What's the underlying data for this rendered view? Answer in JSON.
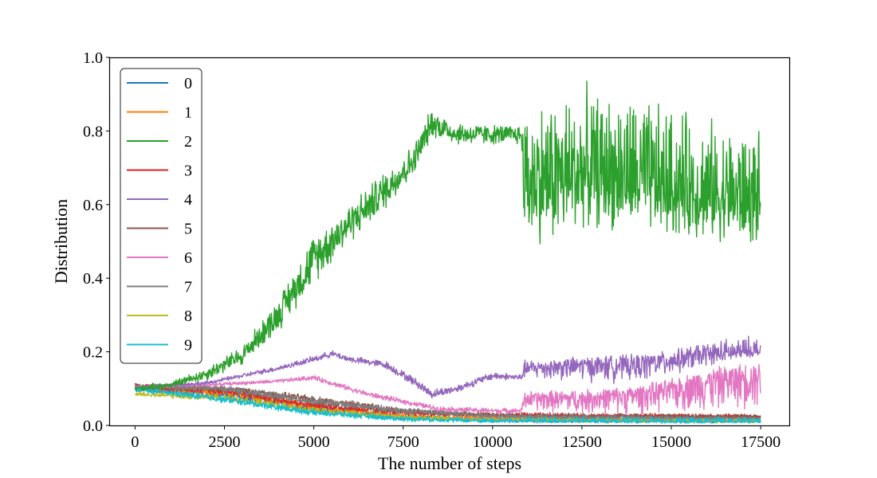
{
  "chart_data": {
    "type": "line",
    "title": "",
    "xlabel": "The number of steps",
    "ylabel": "Distribution",
    "xlim": [
      -700,
      18300
    ],
    "ylim": [
      0.0,
      1.0
    ],
    "x_ticks": [
      0,
      2500,
      5000,
      7500,
      10000,
      12500,
      15000,
      17500
    ],
    "x_tick_labels": [
      "0",
      "2500",
      "5000",
      "7500",
      "10000",
      "12500",
      "15000",
      "17500"
    ],
    "y_ticks": [
      0.0,
      0.2,
      0.4,
      0.6,
      0.8,
      1.0
    ],
    "y_tick_labels": [
      "0.0",
      "0.2",
      "0.4",
      "0.6",
      "0.8",
      "1.0"
    ],
    "grid": false,
    "legend_position": "top-left",
    "series": [
      {
        "name": "0",
        "color": "#1f77b4",
        "points": [
          [
            0,
            0.1
          ],
          [
            2500,
            0.085
          ],
          [
            5000,
            0.045
          ],
          [
            7500,
            0.022
          ],
          [
            10000,
            0.015
          ],
          [
            10800,
            0.014
          ],
          [
            12500,
            0.014
          ],
          [
            15000,
            0.013
          ],
          [
            17500,
            0.013
          ]
        ],
        "noise_low": [
          0.012,
          0.014,
          0.012,
          0.01,
          0.008,
          0.008,
          0.008,
          0.008,
          0.008
        ],
        "noise_high": [
          0.012,
          0.014,
          0.012,
          0.01,
          0.008,
          0.008,
          0.008,
          0.008,
          0.008
        ]
      },
      {
        "name": "1",
        "color": "#ff7f0e",
        "points": [
          [
            0,
            0.105
          ],
          [
            2500,
            0.09
          ],
          [
            5000,
            0.05
          ],
          [
            7500,
            0.025
          ],
          [
            10000,
            0.018
          ],
          [
            10800,
            0.017
          ],
          [
            12500,
            0.016
          ],
          [
            15000,
            0.015
          ],
          [
            17500,
            0.014
          ]
        ],
        "noise_low": [
          0.012,
          0.014,
          0.012,
          0.01,
          0.008,
          0.008,
          0.008,
          0.008,
          0.008
        ],
        "noise_high": [
          0.012,
          0.014,
          0.012,
          0.01,
          0.008,
          0.008,
          0.008,
          0.008,
          0.008
        ]
      },
      {
        "name": "2",
        "color": "#2ca02c",
        "points": [
          [
            0,
            0.1
          ],
          [
            1000,
            0.11
          ],
          [
            2000,
            0.14
          ],
          [
            3000,
            0.19
          ],
          [
            4000,
            0.3
          ],
          [
            5000,
            0.45
          ],
          [
            6000,
            0.55
          ],
          [
            7000,
            0.64
          ],
          [
            7800,
            0.72
          ],
          [
            8300,
            0.82
          ],
          [
            9000,
            0.79
          ],
          [
            10000,
            0.79
          ],
          [
            10800,
            0.79
          ],
          [
            10900,
            0.66
          ],
          [
            12000,
            0.67
          ],
          [
            12500,
            0.68
          ],
          [
            14000,
            0.67
          ],
          [
            15000,
            0.64
          ],
          [
            16000,
            0.62
          ],
          [
            17500,
            0.61
          ]
        ],
        "noise_low": [
          0.01,
          0.01,
          0.02,
          0.03,
          0.05,
          0.07,
          0.06,
          0.06,
          0.05,
          0.04,
          0.03,
          0.03,
          0.03,
          0.18,
          0.2,
          0.15,
          0.17,
          0.15,
          0.12,
          0.14
        ],
        "noise_high": [
          0.01,
          0.01,
          0.02,
          0.03,
          0.05,
          0.08,
          0.06,
          0.06,
          0.05,
          0.05,
          0.04,
          0.03,
          0.03,
          0.24,
          0.26,
          0.26,
          0.25,
          0.25,
          0.24,
          0.2
        ]
      },
      {
        "name": "3",
        "color": "#d62728",
        "points": [
          [
            0,
            0.105
          ],
          [
            2500,
            0.095
          ],
          [
            5000,
            0.055
          ],
          [
            7500,
            0.035
          ],
          [
            10000,
            0.027
          ],
          [
            10800,
            0.027
          ],
          [
            12500,
            0.026
          ],
          [
            15000,
            0.025
          ],
          [
            17500,
            0.024
          ]
        ],
        "noise_low": [
          0.01,
          0.012,
          0.012,
          0.01,
          0.006,
          0.006,
          0.006,
          0.006,
          0.006
        ],
        "noise_high": [
          0.01,
          0.012,
          0.012,
          0.01,
          0.008,
          0.01,
          0.008,
          0.008,
          0.008
        ]
      },
      {
        "name": "4",
        "color": "#9467bd",
        "points": [
          [
            0,
            0.105
          ],
          [
            2000,
            0.115
          ],
          [
            4000,
            0.155
          ],
          [
            5000,
            0.18
          ],
          [
            5500,
            0.195
          ],
          [
            6000,
            0.18
          ],
          [
            7000,
            0.165
          ],
          [
            7800,
            0.12
          ],
          [
            8300,
            0.085
          ],
          [
            9000,
            0.1
          ],
          [
            10000,
            0.135
          ],
          [
            10800,
            0.13
          ],
          [
            10900,
            0.155
          ],
          [
            12500,
            0.165
          ],
          [
            14000,
            0.17
          ],
          [
            15000,
            0.18
          ],
          [
            16000,
            0.19
          ],
          [
            17500,
            0.2
          ]
        ],
        "noise_low": [
          0.005,
          0.006,
          0.008,
          0.01,
          0.01,
          0.01,
          0.012,
          0.014,
          0.014,
          0.012,
          0.012,
          0.01,
          0.03,
          0.05,
          0.06,
          0.05,
          0.03,
          0.01
        ],
        "noise_high": [
          0.005,
          0.006,
          0.008,
          0.01,
          0.01,
          0.01,
          0.012,
          0.014,
          0.014,
          0.012,
          0.012,
          0.01,
          0.025,
          0.025,
          0.025,
          0.025,
          0.045,
          0.05
        ]
      },
      {
        "name": "5",
        "color": "#8c564b",
        "points": [
          [
            0,
            0.105
          ],
          [
            2500,
            0.1
          ],
          [
            5000,
            0.07
          ],
          [
            7500,
            0.04
          ],
          [
            10000,
            0.027
          ],
          [
            10800,
            0.026
          ],
          [
            12500,
            0.025
          ],
          [
            15000,
            0.025
          ],
          [
            17500,
            0.024
          ]
        ],
        "noise_low": [
          0.008,
          0.01,
          0.012,
          0.01,
          0.006,
          0.006,
          0.006,
          0.006,
          0.006
        ],
        "noise_high": [
          0.008,
          0.01,
          0.012,
          0.01,
          0.008,
          0.01,
          0.008,
          0.008,
          0.008
        ]
      },
      {
        "name": "6",
        "color": "#e377c2",
        "points": [
          [
            0,
            0.105
          ],
          [
            2000,
            0.11
          ],
          [
            4000,
            0.12
          ],
          [
            5000,
            0.13
          ],
          [
            5500,
            0.115
          ],
          [
            6500,
            0.085
          ],
          [
            7500,
            0.065
          ],
          [
            8500,
            0.045
          ],
          [
            10000,
            0.04
          ],
          [
            10800,
            0.04
          ],
          [
            10900,
            0.075
          ],
          [
            12500,
            0.075
          ],
          [
            14000,
            0.085
          ],
          [
            15000,
            0.1
          ],
          [
            16000,
            0.12
          ],
          [
            17500,
            0.14
          ]
        ],
        "noise_low": [
          0.004,
          0.005,
          0.006,
          0.008,
          0.008,
          0.008,
          0.008,
          0.008,
          0.008,
          0.008,
          0.04,
          0.05,
          0.06,
          0.07,
          0.09,
          0.1
        ],
        "noise_high": [
          0.004,
          0.005,
          0.006,
          0.008,
          0.008,
          0.008,
          0.008,
          0.008,
          0.008,
          0.008,
          0.02,
          0.025,
          0.025,
          0.03,
          0.04,
          0.04
        ]
      },
      {
        "name": "7",
        "color": "#7f7f7f",
        "points": [
          [
            0,
            0.105
          ],
          [
            2500,
            0.1
          ],
          [
            5000,
            0.065
          ],
          [
            7500,
            0.04
          ],
          [
            10000,
            0.025
          ],
          [
            10800,
            0.024
          ],
          [
            12500,
            0.022
          ],
          [
            15000,
            0.02
          ],
          [
            17500,
            0.018
          ]
        ],
        "noise_low": [
          0.008,
          0.01,
          0.012,
          0.01,
          0.006,
          0.006,
          0.006,
          0.006,
          0.006
        ],
        "noise_high": [
          0.008,
          0.01,
          0.012,
          0.01,
          0.008,
          0.01,
          0.008,
          0.008,
          0.008
        ]
      },
      {
        "name": "8",
        "color": "#bcbd22",
        "points": [
          [
            0,
            0.085
          ],
          [
            2500,
            0.075
          ],
          [
            5000,
            0.04
          ],
          [
            7500,
            0.022
          ],
          [
            10000,
            0.015
          ],
          [
            10800,
            0.015
          ],
          [
            12500,
            0.014
          ],
          [
            15000,
            0.013
          ],
          [
            17500,
            0.012
          ]
        ],
        "noise_low": [
          0.008,
          0.01,
          0.01,
          0.008,
          0.006,
          0.006,
          0.006,
          0.006,
          0.006
        ],
        "noise_high": [
          0.008,
          0.01,
          0.01,
          0.008,
          0.006,
          0.006,
          0.006,
          0.006,
          0.006
        ]
      },
      {
        "name": "9",
        "color": "#17becf",
        "points": [
          [
            0,
            0.1
          ],
          [
            2500,
            0.07
          ],
          [
            5000,
            0.035
          ],
          [
            7500,
            0.018
          ],
          [
            10000,
            0.012
          ],
          [
            10800,
            0.012
          ],
          [
            12500,
            0.012
          ],
          [
            15000,
            0.011
          ],
          [
            17500,
            0.011
          ]
        ],
        "noise_low": [
          0.008,
          0.01,
          0.01,
          0.008,
          0.006,
          0.006,
          0.006,
          0.006,
          0.006
        ],
        "noise_high": [
          0.008,
          0.012,
          0.01,
          0.008,
          0.01,
          0.012,
          0.012,
          0.012,
          0.012
        ]
      }
    ]
  }
}
